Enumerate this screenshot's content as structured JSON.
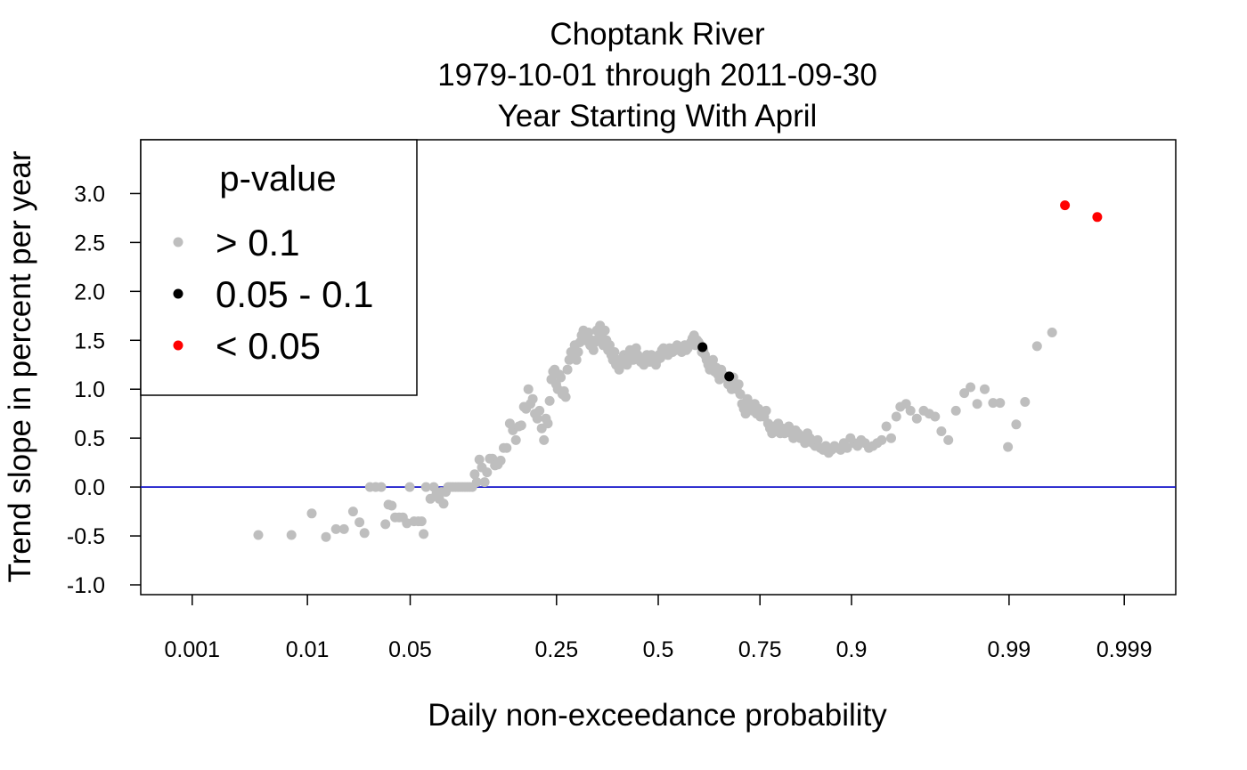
{
  "chart_data": {
    "type": "scatter",
    "title": [
      "Choptank River",
      "1979-10-01 through 2011-09-30",
      "Year Starting With April"
    ],
    "xlabel": "Daily non-exceedance probability",
    "ylabel": "Trend slope in percent per year",
    "x_scale": "probit",
    "xlim": [
      0.0003,
      0.9997
    ],
    "ylim": [
      -1.1,
      3.55
    ],
    "x_ticks": [
      {
        "value": 0.001,
        "label": "0.001"
      },
      {
        "value": 0.01,
        "label": "0.01"
      },
      {
        "value": 0.05,
        "label": "0.05"
      },
      {
        "value": 0.25,
        "label": "0.25"
      },
      {
        "value": 0.5,
        "label": "0.5"
      },
      {
        "value": 0.75,
        "label": "0.75"
      },
      {
        "value": 0.9,
        "label": "0.9"
      },
      {
        "value": 0.99,
        "label": "0.99"
      },
      {
        "value": 0.999,
        "label": "0.999"
      }
    ],
    "y_ticks": [
      {
        "value": -1.0,
        "label": "-1.0"
      },
      {
        "value": -0.5,
        "label": "-0.5"
      },
      {
        "value": 0.0,
        "label": "0.0"
      },
      {
        "value": 0.5,
        "label": "0.5"
      },
      {
        "value": 1.0,
        "label": "1.0"
      },
      {
        "value": 1.5,
        "label": "1.5"
      },
      {
        "value": 2.0,
        "label": "2.0"
      },
      {
        "value": 2.5,
        "label": "2.5"
      },
      {
        "value": 3.0,
        "label": "3.0"
      }
    ],
    "reference_line": {
      "y": 0,
      "color": "#1010c8"
    },
    "legend": {
      "title": "p-value",
      "position": "top-left"
    },
    "grid": false,
    "series": [
      {
        "name": "> 0.1",
        "color": "#bebebe",
        "points": [
          [
            0.004,
            -0.49
          ],
          [
            0.0075,
            -0.49
          ],
          [
            0.0108,
            -0.27
          ],
          [
            0.0138,
            -0.51
          ],
          [
            0.0163,
            -0.43
          ],
          [
            0.0186,
            -0.43
          ],
          [
            0.0215,
            -0.25
          ],
          [
            0.0238,
            -0.36
          ],
          [
            0.0257,
            -0.47
          ],
          [
            0.028,
            0.0
          ],
          [
            0.0305,
            0.0
          ],
          [
            0.0331,
            0.0
          ],
          [
            0.0352,
            -0.38
          ],
          [
            0.0368,
            -0.18
          ],
          [
            0.0386,
            -0.19
          ],
          [
            0.0405,
            -0.31
          ],
          [
            0.0429,
            -0.31
          ],
          [
            0.0452,
            -0.31
          ],
          [
            0.0497,
            0.0
          ],
          [
            0.0478,
            -0.37
          ],
          [
            0.0527,
            -0.35
          ],
          [
            0.0558,
            -0.35
          ],
          [
            0.0583,
            -0.35
          ],
          [
            0.0599,
            -0.48
          ],
          [
            0.0618,
            0.0
          ],
          [
            0.0654,
            -0.12
          ],
          [
            0.0683,
            0.0
          ],
          [
            0.0707,
            -0.07
          ],
          [
            0.0732,
            -0.12
          ],
          [
            0.0752,
            -0.05
          ],
          [
            0.0773,
            -0.17
          ],
          [
            0.0795,
            -0.05
          ],
          [
            0.0818,
            0.0
          ],
          [
            0.0842,
            0.0
          ],
          [
            0.0866,
            0.0
          ],
          [
            0.0893,
            0.0
          ],
          [
            0.092,
            0.0
          ],
          [
            0.0946,
            0.0
          ],
          [
            0.0972,
            0.0
          ],
          [
            0.1,
            0.0
          ],
          [
            0.1028,
            0.0
          ],
          [
            0.1057,
            0.0
          ],
          [
            0.1087,
            0.0
          ],
          [
            0.1117,
            0.13
          ],
          [
            0.1145,
            0.05
          ],
          [
            0.1178,
            0.28
          ],
          [
            0.1211,
            0.2
          ],
          [
            0.1248,
            0.05
          ],
          [
            0.1281,
            0.15
          ],
          [
            0.132,
            0.29
          ],
          [
            0.1357,
            0.29
          ],
          [
            0.1395,
            0.22
          ],
          [
            0.1437,
            0.23
          ],
          [
            0.1481,
            0.27
          ],
          [
            0.1527,
            0.4
          ],
          [
            0.1574,
            0.4
          ],
          [
            0.1625,
            0.65
          ],
          [
            0.1675,
            0.58
          ],
          [
            0.1726,
            0.48
          ],
          [
            0.1776,
            0.62
          ],
          [
            0.182,
            0.63
          ],
          [
            0.1865,
            0.82
          ],
          [
            0.1903,
            0.8
          ],
          [
            0.1946,
            1.0
          ],
          [
            0.1984,
            0.85
          ],
          [
            0.2027,
            0.9
          ],
          [
            0.2068,
            0.75
          ],
          [
            0.2112,
            0.7
          ],
          [
            0.2155,
            0.78
          ],
          [
            0.2199,
            0.6
          ],
          [
            0.2242,
            0.48
          ],
          [
            0.2282,
            0.7
          ],
          [
            0.232,
            0.65
          ],
          [
            0.2357,
            0.88
          ],
          [
            0.2393,
            1.1
          ],
          [
            0.2427,
            1.18
          ],
          [
            0.246,
            1.2
          ],
          [
            0.2493,
            1.05
          ],
          [
            0.2526,
            1.0
          ],
          [
            0.2558,
            1.15
          ],
          [
            0.2591,
            1.12
          ],
          [
            0.2625,
            0.95
          ],
          [
            0.266,
            0.98
          ],
          [
            0.2697,
            0.92
          ],
          [
            0.2736,
            1.2
          ],
          [
            0.2775,
            1.3
          ],
          [
            0.2815,
            1.38
          ],
          [
            0.2855,
            1.35
          ],
          [
            0.2897,
            1.45
          ],
          [
            0.2938,
            1.3
          ],
          [
            0.2978,
            1.38
          ],
          [
            0.3018,
            1.48
          ],
          [
            0.3058,
            1.55
          ],
          [
            0.3098,
            1.6
          ],
          [
            0.3138,
            1.5
          ],
          [
            0.3178,
            1.55
          ],
          [
            0.3218,
            1.58
          ],
          [
            0.3258,
            1.45
          ],
          [
            0.3298,
            1.5
          ],
          [
            0.3338,
            1.4
          ],
          [
            0.3378,
            1.48
          ],
          [
            0.3418,
            1.6
          ],
          [
            0.3458,
            1.52
          ],
          [
            0.3498,
            1.65
          ],
          [
            0.3538,
            1.55
          ],
          [
            0.3578,
            1.45
          ],
          [
            0.3618,
            1.6
          ],
          [
            0.3658,
            1.5
          ],
          [
            0.3698,
            1.4
          ],
          [
            0.3738,
            1.45
          ],
          [
            0.3778,
            1.35
          ],
          [
            0.3818,
            1.3
          ],
          [
            0.3858,
            1.38
          ],
          [
            0.3898,
            1.25
          ],
          [
            0.3938,
            1.3
          ],
          [
            0.3978,
            1.2
          ],
          [
            0.4018,
            1.25
          ],
          [
            0.4058,
            1.28
          ],
          [
            0.4098,
            1.35
          ],
          [
            0.4138,
            1.3
          ],
          [
            0.4178,
            1.25
          ],
          [
            0.4218,
            1.32
          ],
          [
            0.4258,
            1.4
          ],
          [
            0.4298,
            1.35
          ],
          [
            0.4338,
            1.3
          ],
          [
            0.4378,
            1.32
          ],
          [
            0.4418,
            1.42
          ],
          [
            0.4458,
            1.35
          ],
          [
            0.4498,
            1.3
          ],
          [
            0.4538,
            1.28
          ],
          [
            0.4578,
            1.32
          ],
          [
            0.4618,
            1.25
          ],
          [
            0.4658,
            1.3
          ],
          [
            0.4698,
            1.35
          ],
          [
            0.4738,
            1.3
          ],
          [
            0.4778,
            1.28
          ],
          [
            0.4818,
            1.35
          ],
          [
            0.4858,
            1.3
          ],
          [
            0.4898,
            1.32
          ],
          [
            0.4938,
            1.25
          ],
          [
            0.4978,
            1.3
          ],
          [
            0.5018,
            1.35
          ],
          [
            0.5058,
            1.32
          ],
          [
            0.5098,
            1.4
          ],
          [
            0.5138,
            1.42
          ],
          [
            0.5178,
            1.38
          ],
          [
            0.5218,
            1.4
          ],
          [
            0.5258,
            1.35
          ],
          [
            0.5298,
            1.42
          ],
          [
            0.5338,
            1.4
          ],
          [
            0.5378,
            1.38
          ],
          [
            0.5418,
            1.42
          ],
          [
            0.5458,
            1.4
          ],
          [
            0.5498,
            1.45
          ],
          [
            0.5538,
            1.42
          ],
          [
            0.5578,
            1.4
          ],
          [
            0.5618,
            1.38
          ],
          [
            0.5658,
            1.42
          ],
          [
            0.5698,
            1.45
          ],
          [
            0.5738,
            1.4
          ],
          [
            0.5778,
            1.42
          ],
          [
            0.5818,
            1.45
          ],
          [
            0.5858,
            1.48
          ],
          [
            0.5898,
            1.52
          ],
          [
            0.5938,
            1.55
          ],
          [
            0.5978,
            1.45
          ],
          [
            0.6018,
            1.5
          ],
          [
            0.6058,
            1.48
          ],
          [
            0.6098,
            1.45
          ],
          [
            0.6138,
            1.38
          ],
          [
            0.6178,
            1.4
          ],
          [
            0.6218,
            1.35
          ],
          [
            0.6258,
            1.3
          ],
          [
            0.6298,
            1.25
          ],
          [
            0.6338,
            1.2
          ],
          [
            0.6378,
            1.25
          ],
          [
            0.6418,
            1.3
          ],
          [
            0.6458,
            1.18
          ],
          [
            0.6498,
            1.22
          ],
          [
            0.6538,
            1.15
          ],
          [
            0.6578,
            1.1
          ],
          [
            0.6618,
            1.2
          ],
          [
            0.6658,
            1.15
          ],
          [
            0.6698,
            1.12
          ],
          [
            0.6788,
            1.05
          ],
          [
            0.6828,
            1.08
          ],
          [
            0.6868,
            1.0
          ],
          [
            0.6908,
            1.12
          ],
          [
            0.6948,
            1.05
          ],
          [
            0.6988,
            1.0
          ],
          [
            0.7028,
            1.05
          ],
          [
            0.7068,
            0.95
          ],
          [
            0.7108,
            0.85
          ],
          [
            0.7148,
            0.8
          ],
          [
            0.7188,
            0.75
          ],
          [
            0.7228,
            0.9
          ],
          [
            0.7268,
            0.85
          ],
          [
            0.7308,
            0.8
          ],
          [
            0.7348,
            0.78
          ],
          [
            0.7388,
            0.85
          ],
          [
            0.7428,
            0.75
          ],
          [
            0.7468,
            0.8
          ],
          [
            0.7508,
            0.72
          ],
          [
            0.7548,
            0.75
          ],
          [
            0.7588,
            0.72
          ],
          [
            0.7628,
            0.78
          ],
          [
            0.7668,
            0.65
          ],
          [
            0.7708,
            0.6
          ],
          [
            0.7748,
            0.55
          ],
          [
            0.7788,
            0.62
          ],
          [
            0.7828,
            0.58
          ],
          [
            0.7868,
            0.65
          ],
          [
            0.7908,
            0.55
          ],
          [
            0.7948,
            0.6
          ],
          [
            0.7988,
            0.55
          ],
          [
            0.8028,
            0.58
          ],
          [
            0.8068,
            0.62
          ],
          [
            0.8108,
            0.55
          ],
          [
            0.8148,
            0.5
          ],
          [
            0.8188,
            0.58
          ],
          [
            0.8228,
            0.55
          ],
          [
            0.8268,
            0.5
          ],
          [
            0.8308,
            0.52
          ],
          [
            0.8348,
            0.45
          ],
          [
            0.8388,
            0.55
          ],
          [
            0.8428,
            0.5
          ],
          [
            0.8468,
            0.45
          ],
          [
            0.8508,
            0.42
          ],
          [
            0.8548,
            0.48
          ],
          [
            0.8588,
            0.4
          ],
          [
            0.8628,
            0.38
          ],
          [
            0.8668,
            0.42
          ],
          [
            0.8708,
            0.35
          ],
          [
            0.8748,
            0.38
          ],
          [
            0.8788,
            0.42
          ],
          [
            0.8828,
            0.4
          ],
          [
            0.8868,
            0.38
          ],
          [
            0.8908,
            0.45
          ],
          [
            0.8948,
            0.4
          ],
          [
            0.8988,
            0.5
          ],
          [
            0.9028,
            0.45
          ],
          [
            0.9068,
            0.42
          ],
          [
            0.9108,
            0.48
          ],
          [
            0.9148,
            0.45
          ],
          [
            0.9188,
            0.4
          ],
          [
            0.9228,
            0.42
          ],
          [
            0.9268,
            0.45
          ],
          [
            0.9308,
            0.48
          ],
          [
            0.9348,
            0.62
          ],
          [
            0.9388,
            0.5
          ],
          [
            0.9428,
            0.72
          ],
          [
            0.9458,
            0.82
          ],
          [
            0.9498,
            0.85
          ],
          [
            0.9528,
            0.78
          ],
          [
            0.9568,
            0.7
          ],
          [
            0.9608,
            0.78
          ],
          [
            0.9638,
            0.75
          ],
          [
            0.9668,
            0.72
          ],
          [
            0.9698,
            0.57
          ],
          [
            0.9728,
            0.48
          ],
          [
            0.9758,
            0.78
          ],
          [
            0.9788,
            0.96
          ],
          [
            0.9808,
            1.02
          ],
          [
            0.9828,
            0.85
          ],
          [
            0.9848,
            1.0
          ],
          [
            0.9868,
            0.86
          ],
          [
            0.9883,
            0.86
          ],
          [
            0.9898,
            0.41
          ],
          [
            0.9912,
            0.64
          ],
          [
            0.9925,
            0.87
          ],
          [
            0.994,
            1.44
          ],
          [
            0.9955,
            1.58
          ]
        ]
      },
      {
        "name": "0.05 - 0.1",
        "color": "#000000",
        "points": [
          [
            0.6155,
            1.43
          ],
          [
            0.681,
            1.13
          ]
        ]
      },
      {
        "name": "< 0.05",
        "color": "#ff0000",
        "points": [
          [
            0.9965,
            2.88
          ],
          [
            0.9982,
            2.76
          ]
        ]
      }
    ]
  }
}
